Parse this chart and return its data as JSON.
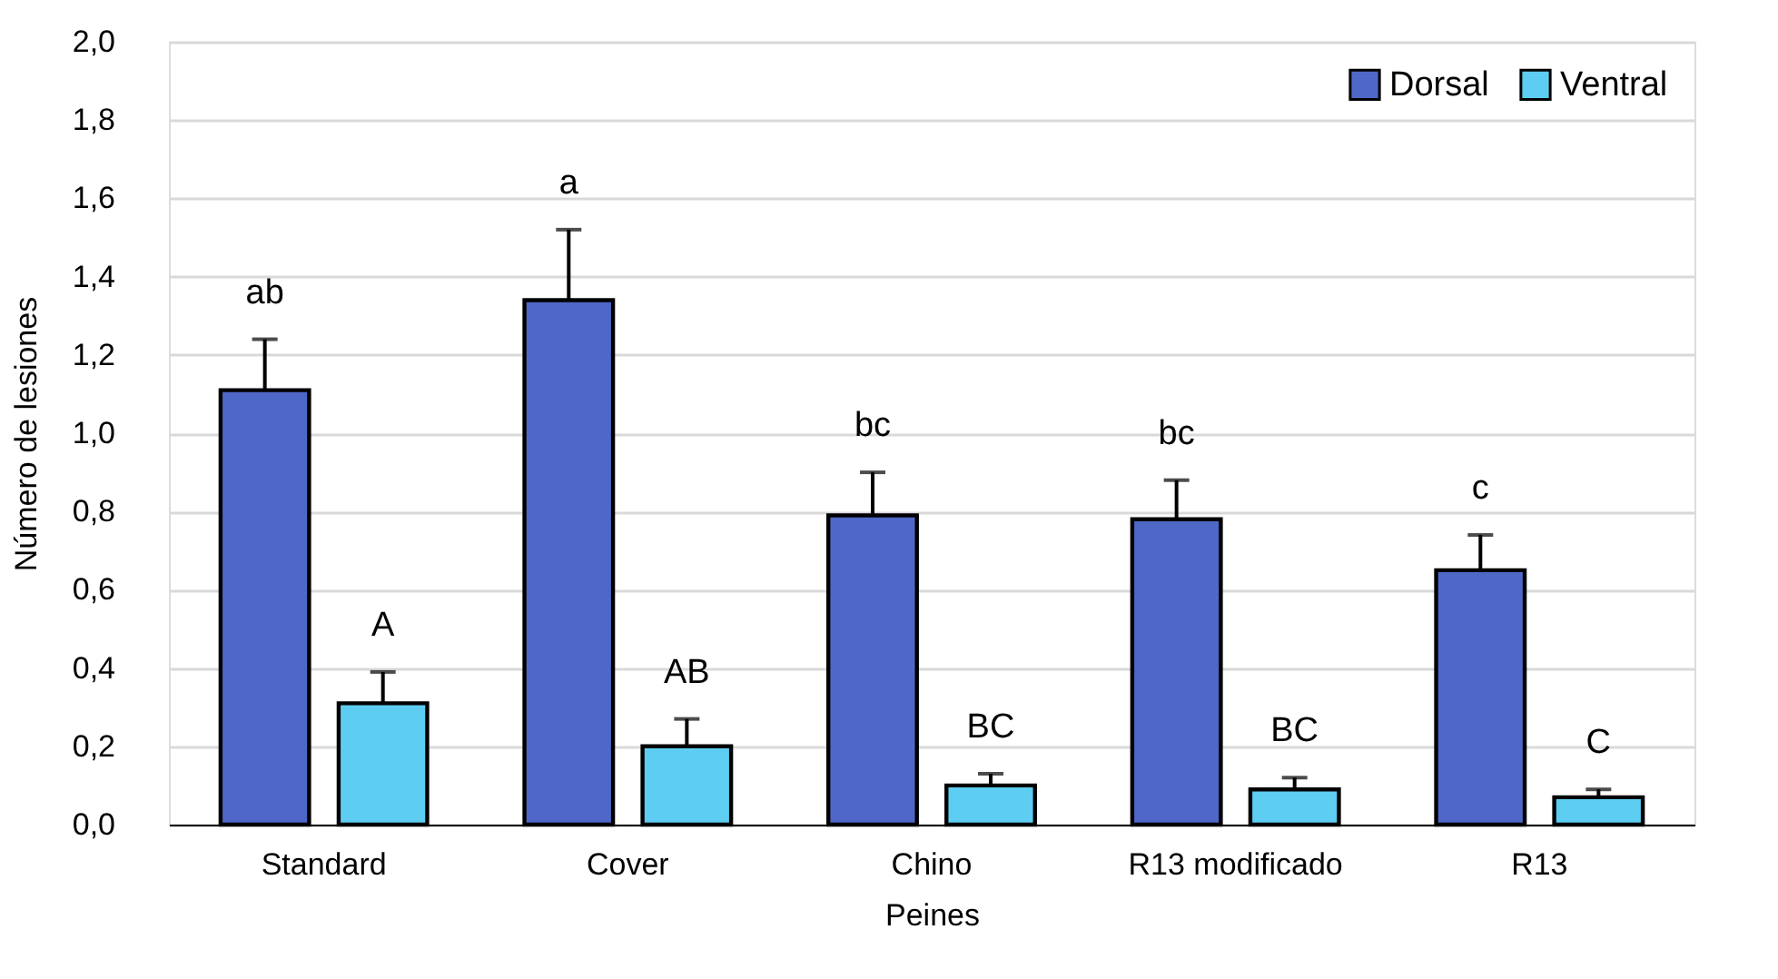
{
  "chart_data": {
    "type": "bar",
    "xlabel": "Peines",
    "ylabel": "Número de lesiones",
    "categories": [
      "Standard",
      "Cover",
      "Chino",
      "R13 modificado",
      "R13"
    ],
    "series": [
      {
        "name": "Dorsal",
        "color": "#4f67c7",
        "values": [
          1.11,
          1.34,
          0.79,
          0.78,
          0.65
        ],
        "errors": [
          [
            1.11,
            1.24
          ],
          [
            1.34,
            1.52
          ],
          [
            0.79,
            0.9
          ],
          [
            0.78,
            0.88
          ],
          [
            0.65,
            0.74
          ]
        ]
      },
      {
        "name": "Ventral",
        "color": "#5ecdf2",
        "values": [
          0.31,
          0.2,
          0.1,
          0.09,
          0.07
        ],
        "errors": [
          [
            0.31,
            0.39
          ],
          [
            0.2,
            0.27
          ],
          [
            0.1,
            0.13
          ],
          [
            0.09,
            0.12
          ],
          [
            0.07,
            0.09
          ]
        ]
      }
    ],
    "ylim": [
      0,
      2
    ],
    "yticks": [
      {
        "value": 0,
        "label": "0,0"
      },
      {
        "value": 0.2,
        "label": "0,2"
      },
      {
        "value": 0.4,
        "label": "0,4"
      },
      {
        "value": 0.6,
        "label": "0,6"
      },
      {
        "value": 0.8,
        "label": "0,8"
      },
      {
        "value": 1.0,
        "label": "1,0"
      },
      {
        "value": 1.2,
        "label": "1,2"
      },
      {
        "value": 1.4,
        "label": "1,4"
      },
      {
        "value": 1.6,
        "label": "1,6"
      },
      {
        "value": 1.8,
        "label": "1,8"
      },
      {
        "value": 2.0,
        "label": "2,0"
      }
    ],
    "grid": "y",
    "legend": "top right",
    "annotations": [
      "ab",
      "A",
      "a",
      "AB",
      "bc",
      "BC",
      "bc",
      "BC",
      "c",
      "C"
    ]
  }
}
